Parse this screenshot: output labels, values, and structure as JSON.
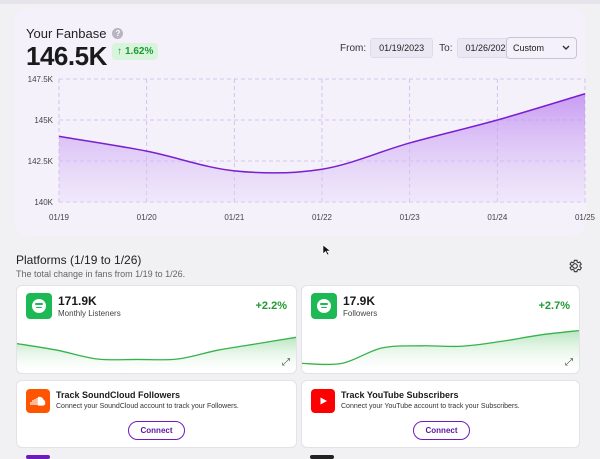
{
  "fanbase": {
    "title": "Your Fanbase",
    "value": "146.5K",
    "change": "1.62%",
    "from_label": "From:",
    "from_date": "01/19/2023",
    "to_label": "To:",
    "to_date": "01/26/2023",
    "range_select": "Custom",
    "icons": {
      "help": "help-icon",
      "change": "arrow-up-icon",
      "dropdown": "chevron-down-icon"
    }
  },
  "chart_data": {
    "type": "area",
    "x": [
      "01/19",
      "01/20",
      "01/21",
      "01/22",
      "01/23",
      "01/24",
      "01/25"
    ],
    "values": [
      144.0,
      143.1,
      141.9,
      142.0,
      143.6,
      145.0,
      146.6
    ],
    "yticks": [
      "147.5K",
      "145K",
      "142.5K",
      "140K"
    ],
    "ylim": [
      140,
      147.5
    ],
    "grid": true,
    "color": "#7a1fd0"
  },
  "platforms": {
    "title": "Platforms (1/19 to 1/26)",
    "subtitle": "The total change in fans from 1/19 to 1/26.",
    "cards": [
      {
        "value": "171.9K",
        "label": "Monthly Listeners",
        "change": "+2.2%",
        "icon": "spotify-icon",
        "trend": [
          0.4,
          0.55,
          0.75,
          0.76,
          0.75,
          0.55,
          0.4,
          0.25
        ]
      },
      {
        "value": "17.9K",
        "label": "Followers",
        "change": "+2.7%",
        "icon": "spotify-icon",
        "trend": [
          0.85,
          0.85,
          0.5,
          0.45,
          0.46,
          0.35,
          0.2,
          0.1
        ]
      }
    ],
    "services": [
      {
        "title": "Track SoundCloud Followers",
        "desc": "Connect your SoundCloud account to track your Followers.",
        "button": "Connect",
        "color": "#ff5500",
        "icon": "soundcloud-icon"
      },
      {
        "title": "Track YouTube Subscribers",
        "desc": "Connect your YouTube account to track your Subscribers.",
        "button": "Connect",
        "color": "#ff0000",
        "icon": "youtube-icon"
      }
    ]
  },
  "colors": {
    "accent": "#6d1bbf",
    "positive": "#1f9a30",
    "card_bg": "#f4f1fb"
  }
}
